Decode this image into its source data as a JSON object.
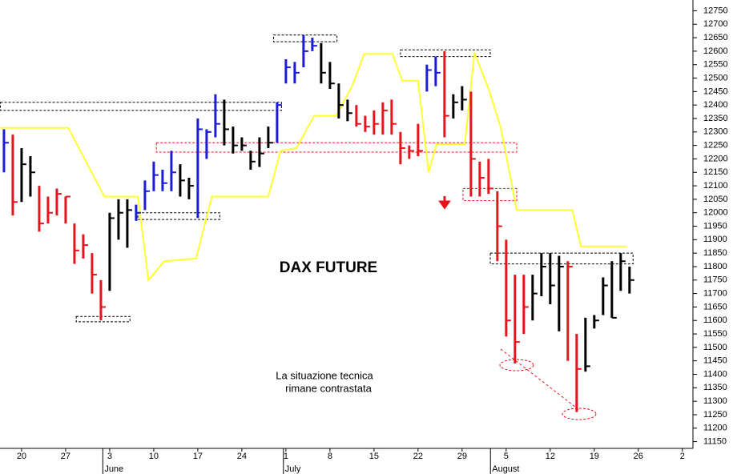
{
  "chart_data": {
    "type": "ohlc",
    "title": "DAX FUTURE",
    "annotation": [
      "La situazione tecnica",
      "rimane contrastata"
    ],
    "x": [
      -2,
      -1,
      0,
      1,
      2,
      3,
      4,
      5,
      6,
      7,
      8,
      9,
      10,
      11,
      12,
      13,
      14,
      15,
      16,
      17,
      18,
      19,
      20,
      21,
      22,
      23,
      24,
      25,
      26,
      27,
      28,
      29,
      30,
      31,
      32,
      33,
      34,
      35,
      36,
      37,
      38,
      39,
      40,
      41,
      42,
      43,
      44,
      45,
      46,
      47,
      48,
      49,
      50,
      51,
      52,
      53,
      54,
      55,
      56,
      57,
      58,
      59,
      60,
      61,
      62,
      63,
      64,
      65,
      66,
      67,
      68,
      69
    ],
    "high": [
      12310,
      12290,
      12240,
      12210,
      12100,
      12060,
      12090,
      12060,
      11960,
      11920,
      11850,
      11750,
      12000,
      12050,
      12050,
      12030,
      12120,
      12190,
      12160,
      12230,
      12180,
      12130,
      12350,
      12310,
      12440,
      12420,
      12320,
      12280,
      12230,
      12280,
      12320,
      12410,
      12570,
      12560,
      12660,
      12650,
      12630,
      12560,
      12480,
      12420,
      12400,
      12360,
      12380,
      12410,
      12420,
      12300,
      12250,
      12330,
      12550,
      12580,
      12600,
      12440,
      12470,
      12450,
      12190,
      12200,
      12080,
      11900,
      11770,
      11770,
      11770,
      11850,
      11850,
      11840,
      11820,
      11550,
      11610,
      11620,
      11760,
      11820,
      11850,
      11800
    ],
    "low": [
      12150,
      11990,
      12040,
      12060,
      11930,
      11960,
      11990,
      11960,
      11810,
      11830,
      11700,
      11600,
      11710,
      11900,
      11870,
      11970,
      12010,
      12080,
      12080,
      12080,
      12060,
      12050,
      11980,
      12200,
      12280,
      12250,
      12220,
      12230,
      12160,
      12170,
      12240,
      12260,
      12480,
      12480,
      12540,
      12600,
      12480,
      12460,
      12350,
      12340,
      12320,
      12300,
      12290,
      12290,
      12290,
      12180,
      12200,
      12210,
      12450,
      12470,
      12280,
      12350,
      12380,
      12060,
      12060,
      12070,
      11820,
      11540,
      11440,
      11550,
      11600,
      11690,
      11660,
      11560,
      11450,
      11260,
      11410,
      11570,
      11620,
      11610,
      11710,
      11700
    ],
    "close": [
      12260,
      12040,
      12180,
      12150,
      11960,
      12000,
      12070,
      12060,
      11860,
      11880,
      11770,
      11650,
      11980,
      12000,
      12010,
      12000,
      12080,
      12140,
      12110,
      12150,
      12120,
      12100,
      12310,
      12300,
      12330,
      12310,
      12250,
      12250,
      12190,
      12220,
      12260,
      12400,
      12540,
      12520,
      12600,
      12620,
      12520,
      12480,
      12400,
      12370,
      12330,
      12320,
      12330,
      12380,
      12330,
      12240,
      12230,
      12230,
      12530,
      12520,
      12360,
      12410,
      12420,
      12200,
      12130,
      12090,
      11950,
      11600,
      11520,
      11650,
      11700,
      11800,
      11730,
      11800,
      11800,
      11420,
      11430,
      11600,
      11730,
      11610,
      11820,
      11750
    ],
    "colors": [
      "#1c1cd8",
      "#e8141b",
      "#000000",
      "#000000",
      "#e8141b",
      "#e8141b",
      "#e8141b",
      "#e8141b",
      "#e8141b",
      "#e8141b",
      "#e8141b",
      "#e8141b",
      "#000000",
      "#000000",
      "#000000",
      "#1c1cd8",
      "#1c1cd8",
      "#1c1cd8",
      "#1c1cd8",
      "#1c1cd8",
      "#000000",
      "#000000",
      "#1c1cd8",
      "#1c1cd8",
      "#1c1cd8",
      "#000000",
      "#000000",
      "#000000",
      "#000000",
      "#000000",
      "#000000",
      "#1c1cd8",
      "#1c1cd8",
      "#1c1cd8",
      "#1c1cd8",
      "#1c1cd8",
      "#000000",
      "#000000",
      "#000000",
      "#000000",
      "#e8141b",
      "#e8141b",
      "#e8141b",
      "#e8141b",
      "#e8141b",
      "#e8141b",
      "#e8141b",
      "#e8141b",
      "#1c1cd8",
      "#1c1cd8",
      "#e8141b",
      "#000000",
      "#000000",
      "#e8141b",
      "#e8141b",
      "#e8141b",
      "#e8141b",
      "#e8141b",
      "#e8141b",
      "#e8141b",
      "#000000",
      "#000000",
      "#000000",
      "#000000",
      "#e8141b",
      "#e8141b",
      "#000000",
      "#000000",
      "#000000",
      "#000000",
      "#000000",
      "#000000"
    ],
    "overlay": {
      "color": "#ffff33",
      "x": [
        -2.4,
        5.3,
        9.4,
        13.2,
        14.4,
        16.2,
        19.8,
        21.6,
        28,
        29.4,
        31.2,
        33.2,
        35.7,
        37.5,
        38.9,
        42.1,
        43.2,
        45,
        46.2,
        47.1,
        50.3,
        51.4,
        53,
        54.4,
        56.2,
        62.5,
        63.5,
        68.7
      ],
      "values": [
        12315,
        12315,
        12060,
        12060,
        11750,
        11820,
        11830,
        12060,
        12060,
        12230,
        12240,
        12360,
        12360,
        12470,
        12590,
        12590,
        12490,
        12490,
        12150,
        12255,
        12255,
        12595,
        12460,
        12315,
        12010,
        12010,
        11875,
        11875
      ]
    },
    "boxes": [
      {
        "x": [
          -2.4,
          29.5
        ],
        "y": [
          12380,
          12410
        ],
        "color": "#000000"
      },
      {
        "x": [
          6.2,
          12.3
        ],
        "y": [
          11595,
          11615
        ],
        "color": "#000000"
      },
      {
        "x": [
          13.2,
          22.5
        ],
        "y": [
          11975,
          12000
        ],
        "color": "#000000"
      },
      {
        "x": [
          28.6,
          35.8
        ],
        "y": [
          12635,
          12660
        ],
        "color": "#000000"
      },
      {
        "x": [
          43,
          53.2
        ],
        "y": [
          12580,
          12605
        ],
        "color": "#000000"
      },
      {
        "x": [
          53.2,
          69.4
        ],
        "y": [
          11810,
          11850
        ],
        "color": "#000000"
      },
      {
        "x": [
          15.3,
          56.2
        ],
        "y": [
          12225,
          12260
        ],
        "color": "#e8141b"
      },
      {
        "x": [
          50.1,
          56.2
        ],
        "y": [
          12045,
          12090
        ],
        "color": "#e8141b"
      }
    ],
    "xlim": [
      -2.45,
      76.2
    ],
    "xticks": [
      {
        "value": 0,
        "label": "20"
      },
      {
        "value": 5,
        "label": "27"
      },
      {
        "value": 10,
        "label": "3"
      },
      {
        "value": 15,
        "label": "10"
      },
      {
        "value": 20,
        "label": "17"
      },
      {
        "value": 25,
        "label": "24"
      },
      {
        "value": 30,
        "label": "1"
      },
      {
        "value": 35,
        "label": "8"
      },
      {
        "value": 40,
        "label": "15"
      },
      {
        "value": 45,
        "label": "22"
      },
      {
        "value": 50,
        "label": "29"
      },
      {
        "value": 55,
        "label": "5"
      },
      {
        "value": 60,
        "label": "12"
      },
      {
        "value": 65,
        "label": "19"
      },
      {
        "value": 70,
        "label": "26"
      },
      {
        "value": 75,
        "label": "2"
      }
    ],
    "months": [
      {
        "value": 9.4,
        "label": "June"
      },
      {
        "value": 29.9,
        "label": "July"
      },
      {
        "value": 53.4,
        "label": "August"
      }
    ],
    "ylim": [
      11125,
      12790
    ],
    "yticks": [
      11150,
      11200,
      11250,
      11300,
      11350,
      11400,
      11450,
      11500,
      11550,
      11600,
      11650,
      11700,
      11750,
      11800,
      11850,
      11900,
      11950,
      12000,
      12050,
      12100,
      12150,
      12200,
      12250,
      12300,
      12350,
      12400,
      12450,
      12500,
      12550,
      12600,
      12650,
      12700,
      12750
    ]
  }
}
